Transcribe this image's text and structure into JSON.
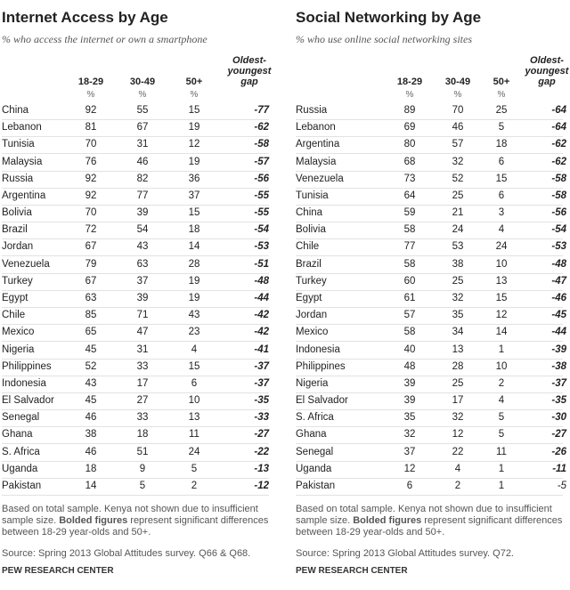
{
  "panels": [
    {
      "title": "Internet Access by Age",
      "subtitle": "% who access the internet or own a smartphone",
      "columns": [
        "18-29",
        "30-49",
        "50+",
        "Oldest-youngest gap"
      ],
      "unit": "%",
      "rows": [
        [
          "China",
          92,
          55,
          15,
          -77
        ],
        [
          "Lebanon",
          81,
          67,
          19,
          -62
        ],
        [
          "Tunisia",
          70,
          31,
          12,
          -58
        ],
        [
          "Malaysia",
          76,
          46,
          19,
          -57
        ],
        [
          "Russia",
          92,
          82,
          36,
          -56
        ],
        [
          "Argentina",
          92,
          77,
          37,
          -55
        ],
        [
          "Bolivia",
          70,
          39,
          15,
          -55
        ],
        [
          "Brazil",
          72,
          54,
          18,
          -54
        ],
        [
          "Jordan",
          67,
          43,
          14,
          -53
        ],
        [
          "Venezuela",
          79,
          63,
          28,
          -51
        ],
        [
          "Turkey",
          67,
          37,
          19,
          -48
        ],
        [
          "Egypt",
          63,
          39,
          19,
          -44
        ],
        [
          "Chile",
          85,
          71,
          43,
          -42
        ],
        [
          "Mexico",
          65,
          47,
          23,
          -42
        ],
        [
          "Nigeria",
          45,
          31,
          4,
          -41
        ],
        [
          "Philippines",
          52,
          33,
          15,
          -37
        ],
        [
          "Indonesia",
          43,
          17,
          6,
          -37
        ],
        [
          "El Salvador",
          45,
          27,
          10,
          -35
        ],
        [
          "Senegal",
          46,
          33,
          13,
          -33
        ],
        [
          "Ghana",
          38,
          18,
          11,
          -27
        ],
        [
          "S. Africa",
          46,
          51,
          24,
          -22
        ],
        [
          "Uganda",
          18,
          9,
          5,
          -13
        ],
        [
          "Pakistan",
          14,
          5,
          2,
          -12
        ]
      ],
      "plain_gap_rows": [],
      "note": [
        "Based on total sample. Kenya not shown due to insufficient sample size. ",
        "Bolded figures",
        " represent significant differences between 18-29 year-olds and 50+."
      ],
      "source": "Source: Spring 2013 Global Attitudes survey. Q66 & Q68.",
      "credit": "PEW RESEARCH CENTER"
    },
    {
      "title": "Social Networking by Age",
      "subtitle": "% who use online social networking sites",
      "columns": [
        "18-29",
        "30-49",
        "50+",
        "Oldest-youngest gap"
      ],
      "unit": "%",
      "rows": [
        [
          "Russia",
          89,
          70,
          25,
          -64
        ],
        [
          "Lebanon",
          69,
          46,
          5,
          -64
        ],
        [
          "Argentina",
          80,
          57,
          18,
          -62
        ],
        [
          "Malaysia",
          68,
          32,
          6,
          -62
        ],
        [
          "Venezuela",
          73,
          52,
          15,
          -58
        ],
        [
          "Tunisia",
          64,
          25,
          6,
          -58
        ],
        [
          "China",
          59,
          21,
          3,
          -56
        ],
        [
          "Bolivia",
          58,
          24,
          4,
          -54
        ],
        [
          "Chile",
          77,
          53,
          24,
          -53
        ],
        [
          "Brazil",
          58,
          38,
          10,
          -48
        ],
        [
          "Turkey",
          60,
          25,
          13,
          -47
        ],
        [
          "Egypt",
          61,
          32,
          15,
          -46
        ],
        [
          "Jordan",
          57,
          35,
          12,
          -45
        ],
        [
          "Mexico",
          58,
          34,
          14,
          -44
        ],
        [
          "Indonesia",
          40,
          13,
          1,
          -39
        ],
        [
          "Philippines",
          48,
          28,
          10,
          -38
        ],
        [
          "Nigeria",
          39,
          25,
          2,
          -37
        ],
        [
          "El Salvador",
          39,
          17,
          4,
          -35
        ],
        [
          "S. Africa",
          35,
          32,
          5,
          -30
        ],
        [
          "Ghana",
          32,
          12,
          5,
          -27
        ],
        [
          "Senegal",
          37,
          22,
          11,
          -26
        ],
        [
          "Uganda",
          12,
          4,
          1,
          -11
        ],
        [
          "Pakistan",
          6,
          2,
          1,
          -5
        ]
      ],
      "plain_gap_rows": [
        22
      ],
      "note": [
        "Based on total sample. Kenya not shown due to insufficient sample size. ",
        "Bolded figures",
        " represent significant differences between 18-29 year-olds and 50+."
      ],
      "source": "Source: Spring 2013 Global Attitudes survey. Q72.",
      "credit": "PEW RESEARCH CENTER"
    }
  ]
}
